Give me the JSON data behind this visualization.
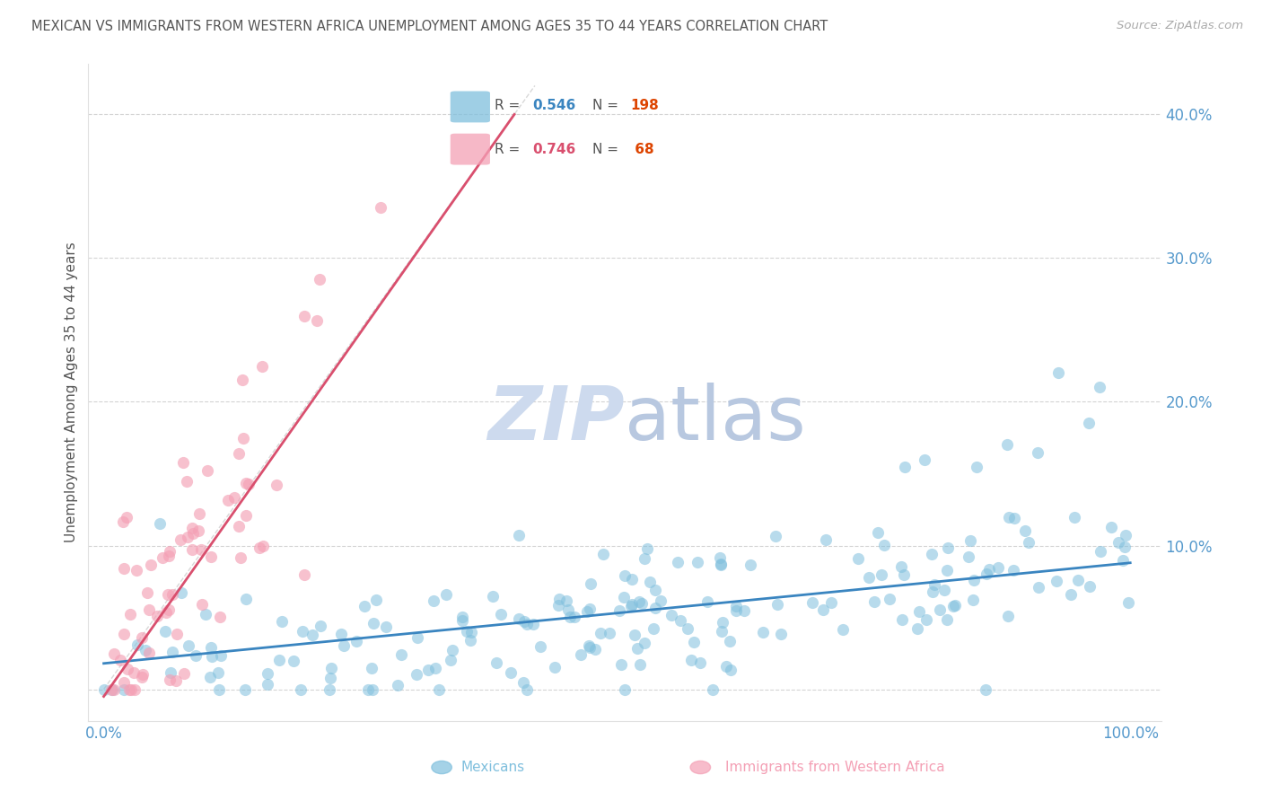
{
  "title": "MEXICAN VS IMMIGRANTS FROM WESTERN AFRICA UNEMPLOYMENT AMONG AGES 35 TO 44 YEARS CORRELATION CHART",
  "source": "Source: ZipAtlas.com",
  "ylabel": "Unemployment Among Ages 35 to 44 years",
  "blue_color": "#7fbfdd",
  "pink_color": "#f4a0b5",
  "blue_line_color": "#3a85c0",
  "pink_line_color": "#d94f6e",
  "diagonal_line_color": "#c8c8c8",
  "watermark_ZI": "#c8d8ee",
  "watermark_P": "#c8d8ee",
  "watermark_atlas": "#c8d8ee",
  "background_color": "#ffffff",
  "grid_color": "#d0d0d0",
  "title_color": "#555555",
  "axis_label_color": "#555555",
  "tick_label_color": "#5599cc",
  "legend_R_color_blue": "#3a85c0",
  "legend_R_color_pink": "#d94f6e",
  "legend_N_color": "#dd4400",
  "legend_text_color": "#555555",
  "source_color": "#aaaaaa"
}
